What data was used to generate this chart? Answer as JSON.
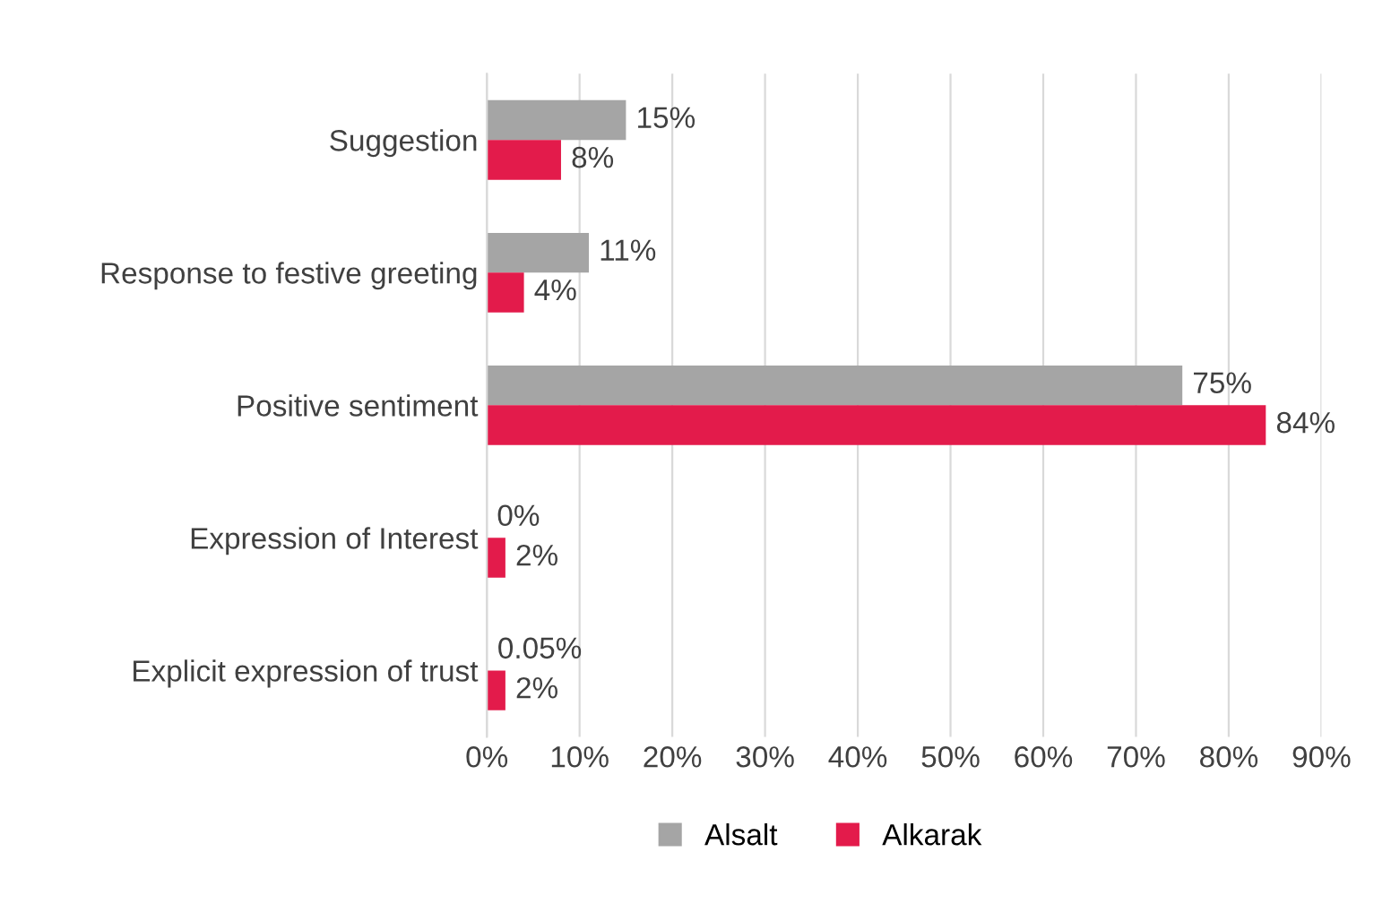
{
  "chart_data": {
    "type": "bar",
    "orientation": "horizontal",
    "categories": [
      "Suggestion",
      "Response to festive greeting",
      "Positive sentiment",
      "Expression of Interest",
      "Explicit expression of trust"
    ],
    "series": [
      {
        "name": "Alsalt",
        "color": "#a5a5a5",
        "values": [
          15,
          11,
          75,
          0,
          0.05
        ],
        "value_labels": [
          "15%",
          "11%",
          "75%",
          "0%",
          "0.05%"
        ]
      },
      {
        "name": "Alkarak",
        "color": "#e31b4b",
        "values": [
          8,
          4,
          84,
          2,
          2
        ],
        "value_labels": [
          "8%",
          "4%",
          "84%",
          "2%",
          "2%"
        ]
      }
    ],
    "xlim": [
      0,
      90
    ],
    "xticks": [
      {
        "value": 0,
        "label": "0%"
      },
      {
        "value": 10,
        "label": "10%"
      },
      {
        "value": 20,
        "label": "20%"
      },
      {
        "value": 30,
        "label": "30%"
      },
      {
        "value": 40,
        "label": "40%"
      },
      {
        "value": 50,
        "label": "50%"
      },
      {
        "value": 60,
        "label": "60%"
      },
      {
        "value": 70,
        "label": "70%"
      },
      {
        "value": 80,
        "label": "80%"
      },
      {
        "value": 90,
        "label": "90%"
      }
    ],
    "grid": "x",
    "legend": "bottom"
  }
}
